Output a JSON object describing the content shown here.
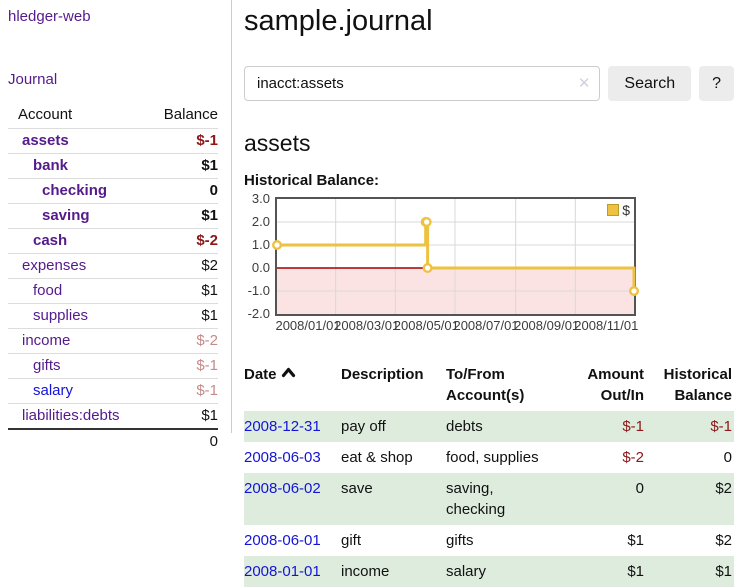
{
  "sidebar": {
    "app_title": "hledger-web",
    "journal_link": "Journal",
    "accounts": {
      "headers": {
        "account": "Account",
        "balance": "Balance"
      },
      "rows": [
        {
          "name": "assets",
          "balance": "$-1"
        },
        {
          "name": "bank",
          "balance": "$1"
        },
        {
          "name": "checking",
          "balance": "0"
        },
        {
          "name": "saving",
          "balance": "$1"
        },
        {
          "name": "cash",
          "balance": "$-2"
        },
        {
          "name": "expenses",
          "balance": "$2"
        },
        {
          "name": "food",
          "balance": "$1"
        },
        {
          "name": "supplies",
          "balance": "$1"
        },
        {
          "name": "income",
          "balance": "$-2"
        },
        {
          "name": "gifts",
          "balance": "$-1"
        },
        {
          "name": "salary",
          "balance": "$-1"
        },
        {
          "name": "liabilities:debts",
          "balance": "$1"
        }
      ],
      "total": "0"
    }
  },
  "main": {
    "title": "sample.journal",
    "search": {
      "value": "inacct:assets",
      "clear_icon": "✕",
      "search_button": "Search",
      "help_button": "?"
    },
    "account_heading": "assets",
    "chart_heading": "Historical Balance:"
  },
  "chart_data": {
    "type": "line",
    "step": true,
    "title": "Historical Balance",
    "series": [
      {
        "name": "$",
        "points": [
          {
            "date": "2008-01-01",
            "value": 1
          },
          {
            "date": "2008-06-01",
            "value": 2
          },
          {
            "date": "2008-06-02",
            "value": 2
          },
          {
            "date": "2008-06-03",
            "value": 0
          },
          {
            "date": "2008-12-31",
            "value": -1
          }
        ]
      }
    ],
    "xlim": [
      "2008-01-01",
      "2008-12-31"
    ],
    "ylim": [
      -2,
      3
    ],
    "yticks": [
      {
        "label": "3.0",
        "value": 3
      },
      {
        "label": "2.0",
        "value": 2
      },
      {
        "label": "1.0",
        "value": 1
      },
      {
        "label": "0.0",
        "value": 0
      },
      {
        "label": "-1.0",
        "value": -1
      },
      {
        "label": "-2.0",
        "value": -2
      }
    ],
    "xticks": [
      {
        "label": "2008/01/01",
        "date": "2008-01-01"
      },
      {
        "label": "2008/03/01",
        "date": "2008-03-01"
      },
      {
        "label": "2008/05/01",
        "date": "2008-05-01"
      },
      {
        "label": "2008/07/01",
        "date": "2008-07-01"
      },
      {
        "label": "2008/09/01",
        "date": "2008-09-01"
      },
      {
        "label": "2008/11/01",
        "date": "2008-11-01"
      }
    ],
    "legend_position": "top-right",
    "grid": true,
    "colors": {
      "line": "#edc240",
      "marker_fill": "#ffffff",
      "below_zero_fill": "#fbe3e3",
      "zero_line": "#a40000",
      "grid_line": "#d8d8d8",
      "plot_border": "#545454"
    }
  },
  "register": {
    "headers": {
      "date": "Date",
      "description": "Description",
      "accounts": "To/From Account(s)",
      "amount": "Amount Out/In",
      "balance": "Historical Balance"
    },
    "rows": [
      {
        "date": "2008-12-31",
        "description": "pay off",
        "accounts": "debts",
        "amount": "$-1",
        "balance": "$-1"
      },
      {
        "date": "2008-06-03",
        "description": "eat & shop",
        "accounts": "food, supplies",
        "amount": "$-2",
        "balance": "0"
      },
      {
        "date": "2008-06-02",
        "description": "save",
        "accounts": "saving, checking",
        "amount": "0",
        "balance": "$2"
      },
      {
        "date": "2008-06-01",
        "description": "gift",
        "accounts": "gifts",
        "amount": "$1",
        "balance": "$2"
      },
      {
        "date": "2008-01-01",
        "description": "income",
        "accounts": "salary",
        "amount": "$1",
        "balance": "$1"
      }
    ]
  },
  "colors": {
    "link_purple": "#551a8b",
    "link_blue": "#1414d8",
    "negative_strong": "#8c1717",
    "negative_soft": "#c58a8a",
    "row_green": "#deecde",
    "button_bg": "#ececec",
    "divider": "#cccccc"
  }
}
